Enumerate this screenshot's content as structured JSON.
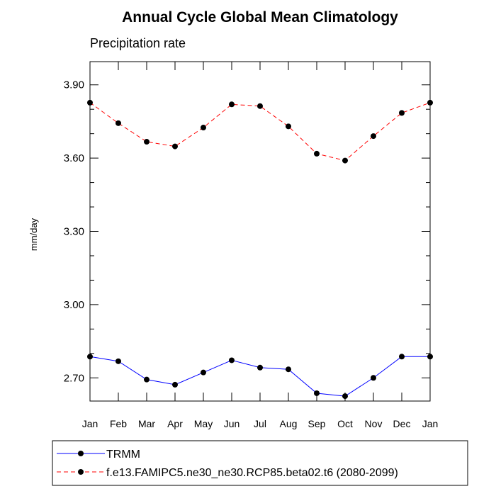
{
  "chart_data": {
    "type": "line",
    "title": "Annual Cycle Global Mean Climatology",
    "subtitle": "Precipitation rate",
    "ylabel": "mm/day",
    "xlabel": "",
    "categories": [
      "Jan",
      "Feb",
      "Mar",
      "Apr",
      "May",
      "Jun",
      "Jul",
      "Aug",
      "Sep",
      "Oct",
      "Nov",
      "Dec",
      "Jan"
    ],
    "ylim": [
      2.605,
      3.995
    ],
    "yticks": [
      2.7,
      3.0,
      3.3,
      3.6,
      3.9
    ],
    "ytick_labels": [
      "2.70",
      "3.00",
      "3.30",
      "3.60",
      "3.90"
    ],
    "grid": false,
    "legend_position": "bottom",
    "series": [
      {
        "name": "TRMM",
        "color": "#0000ff",
        "line_style": "solid",
        "marker": "filled-circle",
        "values": [
          2.787,
          2.768,
          2.693,
          2.672,
          2.722,
          2.772,
          2.742,
          2.735,
          2.637,
          2.625,
          2.7,
          2.787,
          2.787
        ]
      },
      {
        "name": "f.e13.FAMIPC5.ne30_ne30.RCP85.beta02.t6 (2080-2099)",
        "color": "#ff0000",
        "line_style": "dashed",
        "marker": "filled-circle",
        "values": [
          3.827,
          3.743,
          3.667,
          3.648,
          3.725,
          3.82,
          3.813,
          3.73,
          3.618,
          3.59,
          3.69,
          3.785,
          3.827
        ]
      }
    ]
  }
}
